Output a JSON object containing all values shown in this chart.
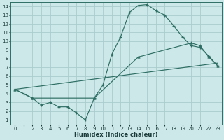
{
  "bg_color": "#cce8e8",
  "grid_color": "#aacccc",
  "line_color": "#2e6e64",
  "xlabel": "Humidex (Indice chaleur)",
  "xlim": [
    -0.5,
    23.5
  ],
  "ylim": [
    0.5,
    14.5
  ],
  "xticks": [
    0,
    1,
    2,
    3,
    4,
    5,
    6,
    7,
    8,
    9,
    10,
    11,
    12,
    13,
    14,
    15,
    16,
    17,
    18,
    19,
    20,
    21,
    22,
    23
  ],
  "yticks": [
    1,
    2,
    3,
    4,
    5,
    6,
    7,
    8,
    9,
    10,
    11,
    12,
    13,
    14
  ],
  "line1_x": [
    0,
    1,
    2,
    3,
    4,
    5,
    6,
    7,
    8,
    9,
    10,
    11,
    12,
    13,
    14,
    15,
    16,
    17,
    18,
    19,
    20,
    21,
    22,
    23
  ],
  "line1_y": [
    4.5,
    4.0,
    3.5,
    2.7,
    3.0,
    2.5,
    2.5,
    1.8,
    1.0,
    3.5,
    5.0,
    8.5,
    10.5,
    13.3,
    14.1,
    14.2,
    13.5,
    13.0,
    11.8,
    10.5,
    9.5,
    9.3,
    8.3,
    7.2
  ],
  "line2_x": [
    0,
    2,
    9,
    14,
    20,
    21,
    22,
    23
  ],
  "line2_y": [
    4.5,
    3.5,
    3.5,
    8.2,
    9.8,
    9.5,
    8.2,
    7.2
  ],
  "line3_x": [
    0,
    23
  ],
  "line3_y": [
    4.5,
    7.5
  ]
}
